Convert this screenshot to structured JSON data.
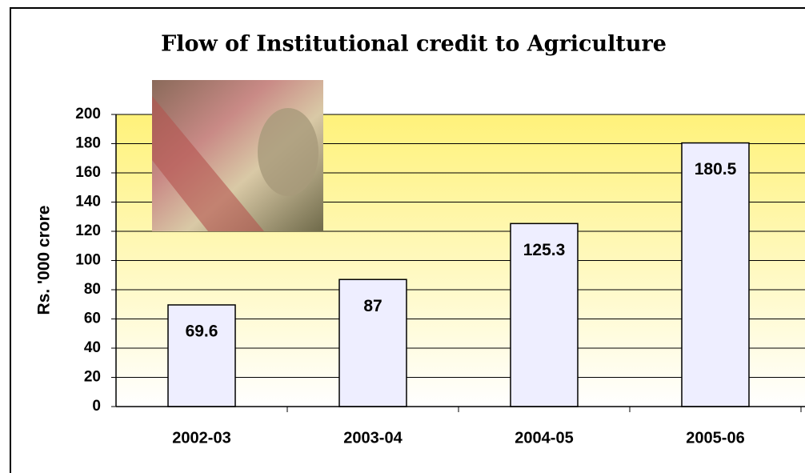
{
  "chart_data": {
    "type": "bar",
    "title": "Flow of Institutional credit to Agriculture",
    "y_label": "Rs. '000 crore",
    "categories": [
      "2002-03",
      "2003-04",
      "2004-05",
      "2005-06"
    ],
    "values": [
      69.6,
      87,
      125.3,
      180.5
    ],
    "color": "#eeeeff",
    "ylim": [
      0,
      200
    ],
    "yticks": [
      0,
      20,
      40,
      60,
      80,
      100,
      120,
      140,
      160,
      180,
      200
    ],
    "grid": true
  }
}
